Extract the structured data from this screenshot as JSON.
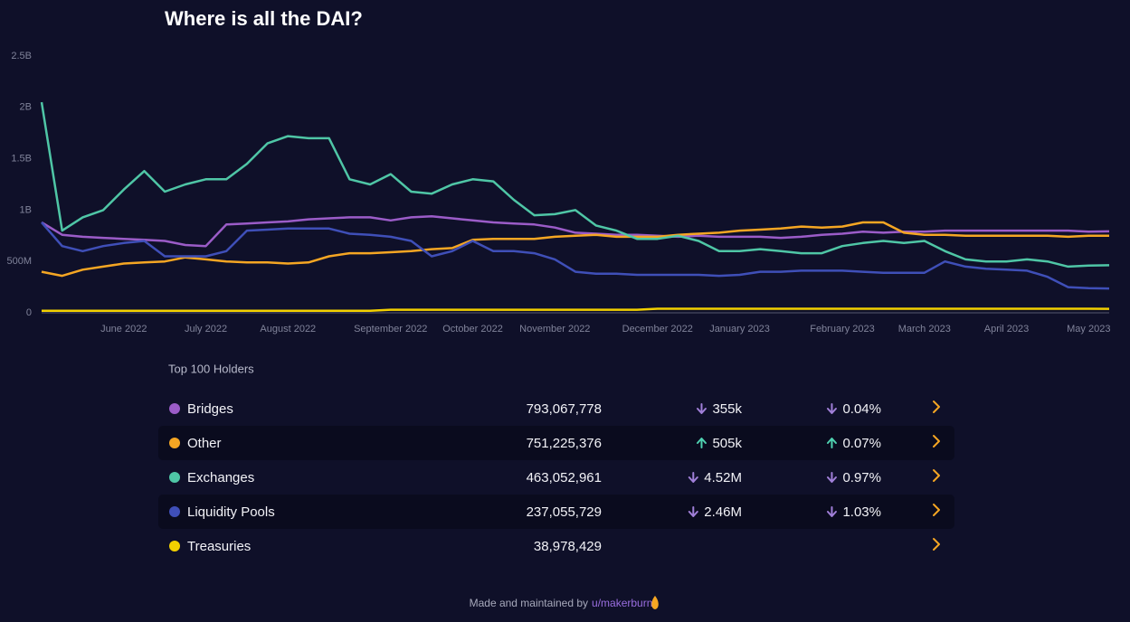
{
  "chart_data": {
    "type": "line",
    "title": "Where is all the DAI?",
    "categories": [
      null,
      null,
      null,
      null,
      "June 2022",
      null,
      null,
      null,
      "July 2022",
      null,
      null,
      null,
      "August 2022",
      null,
      null,
      null,
      null,
      "September 2022",
      null,
      null,
      null,
      "October 2022",
      null,
      null,
      null,
      "November 2022",
      null,
      null,
      null,
      null,
      "December 2022",
      null,
      null,
      null,
      "January 2023",
      null,
      null,
      null,
      null,
      "February 2023",
      null,
      null,
      null,
      "March 2023",
      null,
      null,
      null,
      "April 2023",
      null,
      null,
      null,
      "May 2023",
      null
    ],
    "ylim": [
      0,
      2500000000
    ],
    "yticks": [
      0,
      {
        "value": 500000000,
        "label": "500M"
      },
      {
        "value": 1000000000,
        "label": "1B"
      },
      {
        "value": 1500000000,
        "label": "1.5B"
      },
      {
        "value": 2000000000,
        "label": "2B"
      },
      {
        "value": 2500000000,
        "label": "2.5B"
      }
    ],
    "grid": false,
    "series": [
      {
        "name": "Bridges",
        "color": "#9b5cc8",
        "values": [
          880000000,
          760000000,
          740000000,
          730000000,
          720000000,
          710000000,
          700000000,
          660000000,
          650000000,
          860000000,
          870000000,
          880000000,
          890000000,
          910000000,
          920000000,
          930000000,
          930000000,
          900000000,
          930000000,
          940000000,
          920000000,
          900000000,
          880000000,
          870000000,
          860000000,
          830000000,
          780000000,
          770000000,
          760000000,
          760000000,
          750000000,
          740000000,
          750000000,
          740000000,
          740000000,
          740000000,
          730000000,
          740000000,
          760000000,
          770000000,
          790000000,
          780000000,
          790000000,
          790000000,
          800000000,
          800000000,
          800000000,
          800000000,
          800000000,
          800000000,
          800000000,
          790000000,
          793000000
        ]
      },
      {
        "name": "Other",
        "color": "#f5a623",
        "values": [
          400000000,
          360000000,
          420000000,
          450000000,
          480000000,
          490000000,
          500000000,
          540000000,
          520000000,
          500000000,
          490000000,
          490000000,
          480000000,
          490000000,
          550000000,
          580000000,
          580000000,
          590000000,
          600000000,
          620000000,
          630000000,
          710000000,
          720000000,
          720000000,
          720000000,
          740000000,
          750000000,
          760000000,
          740000000,
          740000000,
          740000000,
          760000000,
          770000000,
          780000000,
          800000000,
          810000000,
          820000000,
          840000000,
          830000000,
          840000000,
          880000000,
          880000000,
          780000000,
          760000000,
          760000000,
          750000000,
          750000000,
          750000000,
          750000000,
          750000000,
          740000000,
          750000000,
          751000000
        ]
      },
      {
        "name": "Exchanges",
        "color": "#4fc6a6",
        "values": [
          2050000000,
          800000000,
          930000000,
          1000000000,
          1200000000,
          1380000000,
          1180000000,
          1250000000,
          1300000000,
          1300000000,
          1450000000,
          1650000000,
          1720000000,
          1700000000,
          1700000000,
          1300000000,
          1250000000,
          1350000000,
          1180000000,
          1160000000,
          1250000000,
          1300000000,
          1280000000,
          1100000000,
          950000000,
          960000000,
          1000000000,
          850000000,
          800000000,
          720000000,
          720000000,
          750000000,
          700000000,
          600000000,
          600000000,
          620000000,
          600000000,
          580000000,
          580000000,
          650000000,
          680000000,
          700000000,
          680000000,
          700000000,
          600000000,
          520000000,
          500000000,
          500000000,
          520000000,
          500000000,
          450000000,
          460000000,
          463000000
        ]
      },
      {
        "name": "Liquidity Pools",
        "color": "#3f4fb8",
        "values": [
          880000000,
          650000000,
          600000000,
          650000000,
          680000000,
          700000000,
          550000000,
          550000000,
          550000000,
          600000000,
          800000000,
          810000000,
          820000000,
          820000000,
          820000000,
          770000000,
          760000000,
          740000000,
          700000000,
          550000000,
          600000000,
          700000000,
          600000000,
          600000000,
          580000000,
          520000000,
          400000000,
          380000000,
          380000000,
          370000000,
          370000000,
          370000000,
          370000000,
          360000000,
          370000000,
          400000000,
          400000000,
          410000000,
          410000000,
          410000000,
          400000000,
          390000000,
          390000000,
          390000000,
          500000000,
          450000000,
          430000000,
          420000000,
          410000000,
          350000000,
          250000000,
          240000000,
          237000000
        ]
      },
      {
        "name": "Treasuries",
        "color": "#f2d000",
        "values": [
          20000000,
          20000000,
          20000000,
          20000000,
          20000000,
          20000000,
          20000000,
          20000000,
          20000000,
          20000000,
          20000000,
          20000000,
          20000000,
          20000000,
          20000000,
          20000000,
          20000000,
          30000000,
          30000000,
          30000000,
          30000000,
          30000000,
          30000000,
          30000000,
          30000000,
          30000000,
          30000000,
          30000000,
          30000000,
          30000000,
          40000000,
          40000000,
          40000000,
          40000000,
          40000000,
          40000000,
          40000000,
          40000000,
          40000000,
          40000000,
          40000000,
          40000000,
          40000000,
          40000000,
          40000000,
          40000000,
          40000000,
          40000000,
          40000000,
          40000000,
          40000000,
          40000000,
          39000000
        ]
      }
    ]
  },
  "table": {
    "title": "Top 100 Holders",
    "rows": [
      {
        "value": "793,067,778",
        "change": "355k",
        "change_pct": "0.04%",
        "direction": "down"
      },
      {
        "value": "751,225,376",
        "change": "505k",
        "change_pct": "0.07%",
        "direction": "up"
      },
      {
        "value": "463,052,961",
        "change": "4.52M",
        "change_pct": "0.97%",
        "direction": "down"
      },
      {
        "value": "237,055,729",
        "change": "2.46M",
        "change_pct": "1.03%",
        "direction": "down"
      },
      {
        "value": "38,978,429"
      }
    ]
  },
  "footer": {
    "text": "Made and maintained by",
    "link": "u/makerburn"
  }
}
